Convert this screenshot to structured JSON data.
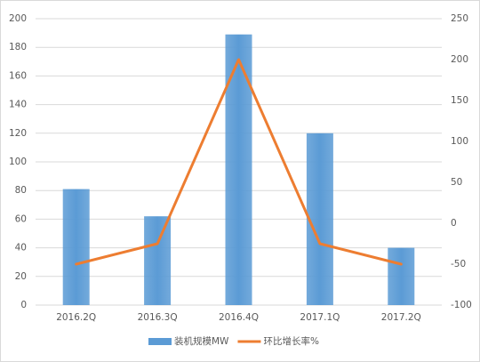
{
  "chart_data": {
    "type": "bar-line",
    "categories": [
      "2016.2Q",
      "2016.3Q",
      "2016.4Q",
      "2017.1Q",
      "2017.2Q"
    ],
    "series": [
      {
        "name": "装机规模MW",
        "type": "bar",
        "color": "#5b9bd5",
        "values": [
          81,
          62,
          189,
          120,
          40
        ]
      },
      {
        "name": "环比增长率%",
        "type": "line",
        "color": "#ed7d31",
        "axis": "y2",
        "values": [
          -50,
          -25,
          200,
          -25,
          -50
        ]
      }
    ],
    "ylim": [
      0,
      200
    ],
    "yticks": [
      0,
      20,
      40,
      60,
      80,
      100,
      120,
      140,
      160,
      180,
      200
    ],
    "y2lim": [
      -100,
      250
    ],
    "y2ticks": [
      -100,
      -50,
      0,
      50,
      100,
      150,
      200,
      250
    ],
    "grid": true,
    "legend": "bottom"
  }
}
